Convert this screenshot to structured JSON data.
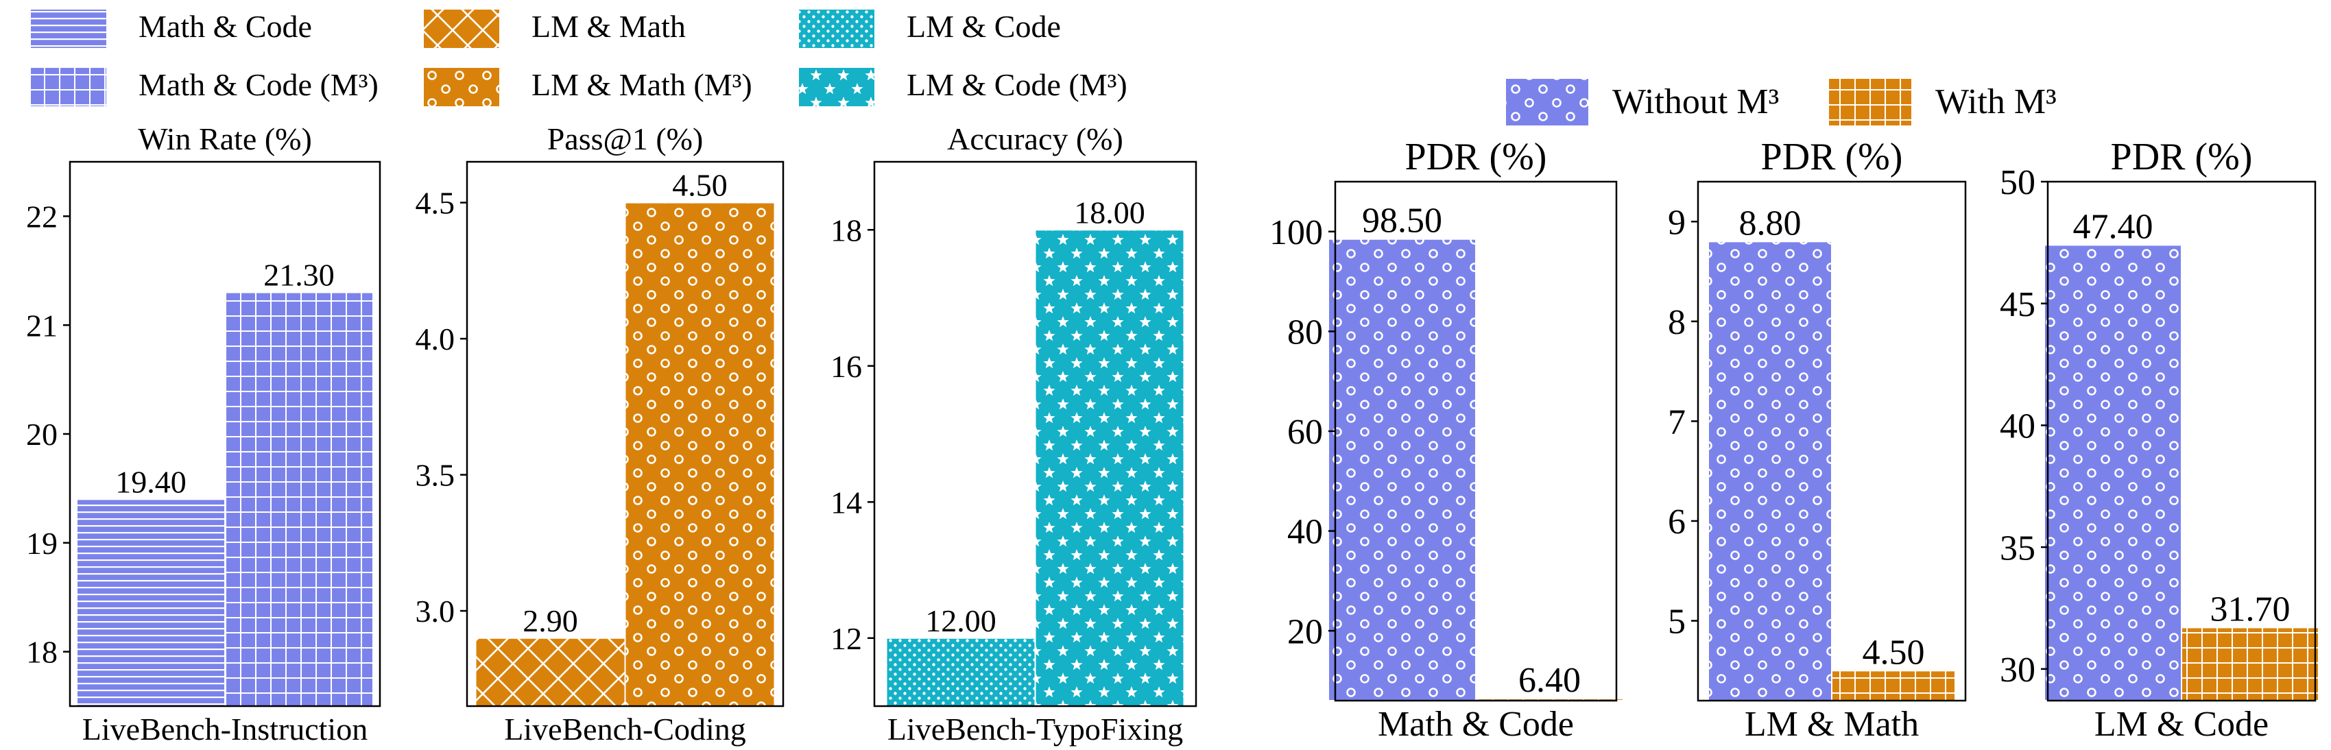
{
  "colors": {
    "purple": "#7b83eb",
    "orange": "#d9820b",
    "cyan": "#14b1c7"
  },
  "legend_left": {
    "entries": [
      {
        "label": "Math & Code",
        "pattern": "hlines",
        "color": "#7b83eb"
      },
      {
        "label": "LM & Math",
        "pattern": "cross",
        "color": "#d9820b"
      },
      {
        "label": "LM & Code",
        "pattern": "dots",
        "color": "#14b1c7"
      },
      {
        "label": "Math & Code (M³)",
        "pattern": "grid",
        "color": "#7b83eb"
      },
      {
        "label": "LM & Math (M³)",
        "pattern": "circles",
        "color": "#d9820b"
      },
      {
        "label": "LM & Code (M³)",
        "pattern": "stars",
        "color": "#14b1c7"
      }
    ]
  },
  "legend_right": {
    "entries": [
      {
        "label": "Without M³",
        "pattern": "circles",
        "color": "#7b83eb"
      },
      {
        "label": "With M³",
        "pattern": "grid",
        "color": "#d9820b"
      }
    ]
  },
  "chart_data": [
    {
      "type": "bar",
      "title": "Win Rate (%)",
      "xlabel": "LiveBench-Instruction",
      "ylim": [
        17.5,
        22.5
      ],
      "yticks": [
        18,
        19,
        20,
        21,
        22
      ],
      "values": [
        19.4,
        21.3
      ],
      "data_labels": [
        "19.40",
        "21.30"
      ],
      "colors": [
        "#7b83eb",
        "#7b83eb"
      ],
      "patterns": [
        "hlines",
        "grid"
      ]
    },
    {
      "type": "bar",
      "title": "Pass@1 (%)",
      "xlabel": "LiveBench-Coding",
      "ylim": [
        2.65,
        4.65
      ],
      "yticks": [
        3.0,
        3.5,
        4.0,
        4.5
      ],
      "ytick_labels": [
        "3.0",
        "3.5",
        "4.0",
        "4.5"
      ],
      "values": [
        2.9,
        4.5
      ],
      "data_labels": [
        "2.90",
        "4.50"
      ],
      "colors": [
        "#d9820b",
        "#d9820b"
      ],
      "patterns": [
        "cross",
        "circles"
      ]
    },
    {
      "type": "bar",
      "title": "Accuracy (%)",
      "xlabel": "LiveBench-TypoFixing",
      "ylim": [
        11.0,
        19.0
      ],
      "yticks": [
        12,
        14,
        16,
        18
      ],
      "values": [
        12.0,
        18.0
      ],
      "data_labels": [
        "12.00",
        "18.00"
      ],
      "colors": [
        "#14b1c7",
        "#14b1c7"
      ],
      "patterns": [
        "dots",
        "stars"
      ]
    },
    {
      "type": "bar",
      "title": "PDR (%)",
      "xlabel": "Math & Code",
      "ylim": [
        6.0,
        110.0
      ],
      "yticks": [
        20,
        40,
        60,
        80,
        100
      ],
      "series": [
        {
          "name": "Without M³",
          "value": 98.5
        },
        {
          "name": "With M³",
          "value": 6.4
        }
      ],
      "values": [
        98.5,
        6.4
      ],
      "data_labels": [
        "98.50",
        "6.40"
      ],
      "colors": [
        "#7b83eb",
        "#d9820b"
      ],
      "patterns": [
        "circles",
        "grid"
      ]
    },
    {
      "type": "bar",
      "title": "PDR (%)",
      "xlabel": "LM & Math",
      "ylim": [
        4.2,
        9.4
      ],
      "yticks": [
        5,
        6,
        7,
        8,
        9
      ],
      "series": [
        {
          "name": "Without M³",
          "value": 8.8
        },
        {
          "name": "With M³",
          "value": 4.5
        }
      ],
      "values": [
        8.8,
        4.5
      ],
      "data_labels": [
        "8.80",
        "4.50"
      ],
      "colors": [
        "#7b83eb",
        "#d9820b"
      ],
      "patterns": [
        "circles",
        "grid"
      ]
    },
    {
      "type": "bar",
      "title": "PDR (%)",
      "xlabel": "LM & Code",
      "ylim": [
        28.7,
        50.0
      ],
      "yticks": [
        30,
        35,
        40,
        45,
        50
      ],
      "series": [
        {
          "name": "Without M³",
          "value": 47.4
        },
        {
          "name": "With M³",
          "value": 31.7
        }
      ],
      "values": [
        47.4,
        31.7
      ],
      "data_labels": [
        "47.40",
        "31.70"
      ],
      "colors": [
        "#7b83eb",
        "#d9820b"
      ],
      "patterns": [
        "circles",
        "grid"
      ]
    }
  ]
}
